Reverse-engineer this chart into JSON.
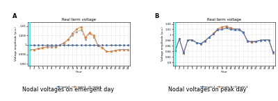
{
  "title_A": "Real term voltage",
  "title_B": "Real term voltage",
  "xlabel_A": "Hour",
  "xlabel_B": "Hour",
  "ylabel_A": "Voltage amplitude (p.u.)",
  "ylabel_B": "Voltage amplitude (p.u.)",
  "caption_A": "Nodal voltages on emergent day",
  "caption_B": "Nodal voltages on peak day",
  "hours": [
    1,
    2,
    3,
    4,
    5,
    6,
    7,
    8,
    9,
    10,
    11,
    12,
    13,
    14,
    15,
    16,
    17,
    18,
    19,
    20,
    21,
    22,
    23,
    24
  ],
  "A_node2": [
    1.0,
    1.0,
    1.0,
    1.0,
    1.0,
    1.0,
    1.0,
    1.0,
    1.0,
    1.0,
    1.0,
    1.0,
    1.0,
    1.0,
    1.0,
    1.0,
    1.0,
    1.0,
    1.0,
    1.0,
    1.0,
    1.0,
    1.0,
    1.0
  ],
  "A_node3": [
    0.9975,
    0.9975,
    0.998,
    0.9985,
    0.999,
    0.999,
    0.999,
    1.0,
    1.001,
    1.003,
    1.006,
    1.0085,
    1.0095,
    1.004,
    1.0065,
    1.005,
    0.9995,
    0.9985,
    0.9965,
    0.9965,
    0.997,
    0.9975,
    0.9975,
    0.9975
  ],
  "A_node4": [
    0.9975,
    0.9975,
    0.998,
    0.9985,
    0.999,
    0.999,
    0.999,
    1.0,
    1.001,
    1.003,
    1.005,
    1.007,
    1.008,
    1.003,
    1.006,
    1.004,
    0.9995,
    0.9985,
    0.9965,
    0.9965,
    0.997,
    0.9975,
    0.9975,
    0.9975
  ],
  "B_node2": [
    0.942,
    0.985,
    0.936,
    0.982,
    0.982,
    0.972,
    0.968,
    0.978,
    0.992,
    1.003,
    1.018,
    1.02,
    1.025,
    1.02,
    1.018,
    1.018,
    1.008,
    0.978,
    0.975,
    0.977,
    0.98,
    0.982,
    0.982,
    0.938
  ],
  "B_node3": [
    0.942,
    0.985,
    0.933,
    0.982,
    0.982,
    0.972,
    0.968,
    0.978,
    0.992,
    1.005,
    1.022,
    1.028,
    1.032,
    1.025,
    1.022,
    1.022,
    1.01,
    0.977,
    0.974,
    0.977,
    0.98,
    0.982,
    0.982,
    0.935
  ],
  "B_node4": [
    0.94,
    0.985,
    0.933,
    0.98,
    0.98,
    0.97,
    0.966,
    0.976,
    0.99,
    1.005,
    1.022,
    1.028,
    1.032,
    1.023,
    1.02,
    1.02,
    1.008,
    0.975,
    0.973,
    0.975,
    0.978,
    0.98,
    0.98,
    0.933
  ],
  "color_node2_A": "#4472c4",
  "color_node3_A": "#ed7d31",
  "color_node4_A": "#a9a9a9",
  "color_node2_B": "#4472c4",
  "color_node3_B": "#ed7d31",
  "color_node4_B": "#a9a9a9",
  "yticks_A": [
    0.99,
    0.995,
    1.0,
    1.005,
    1.01
  ],
  "yticks_B": [
    0.9,
    0.92,
    0.94,
    0.96,
    0.98,
    1.0,
    1.02,
    1.04
  ],
  "bg_color": "#ffffff"
}
